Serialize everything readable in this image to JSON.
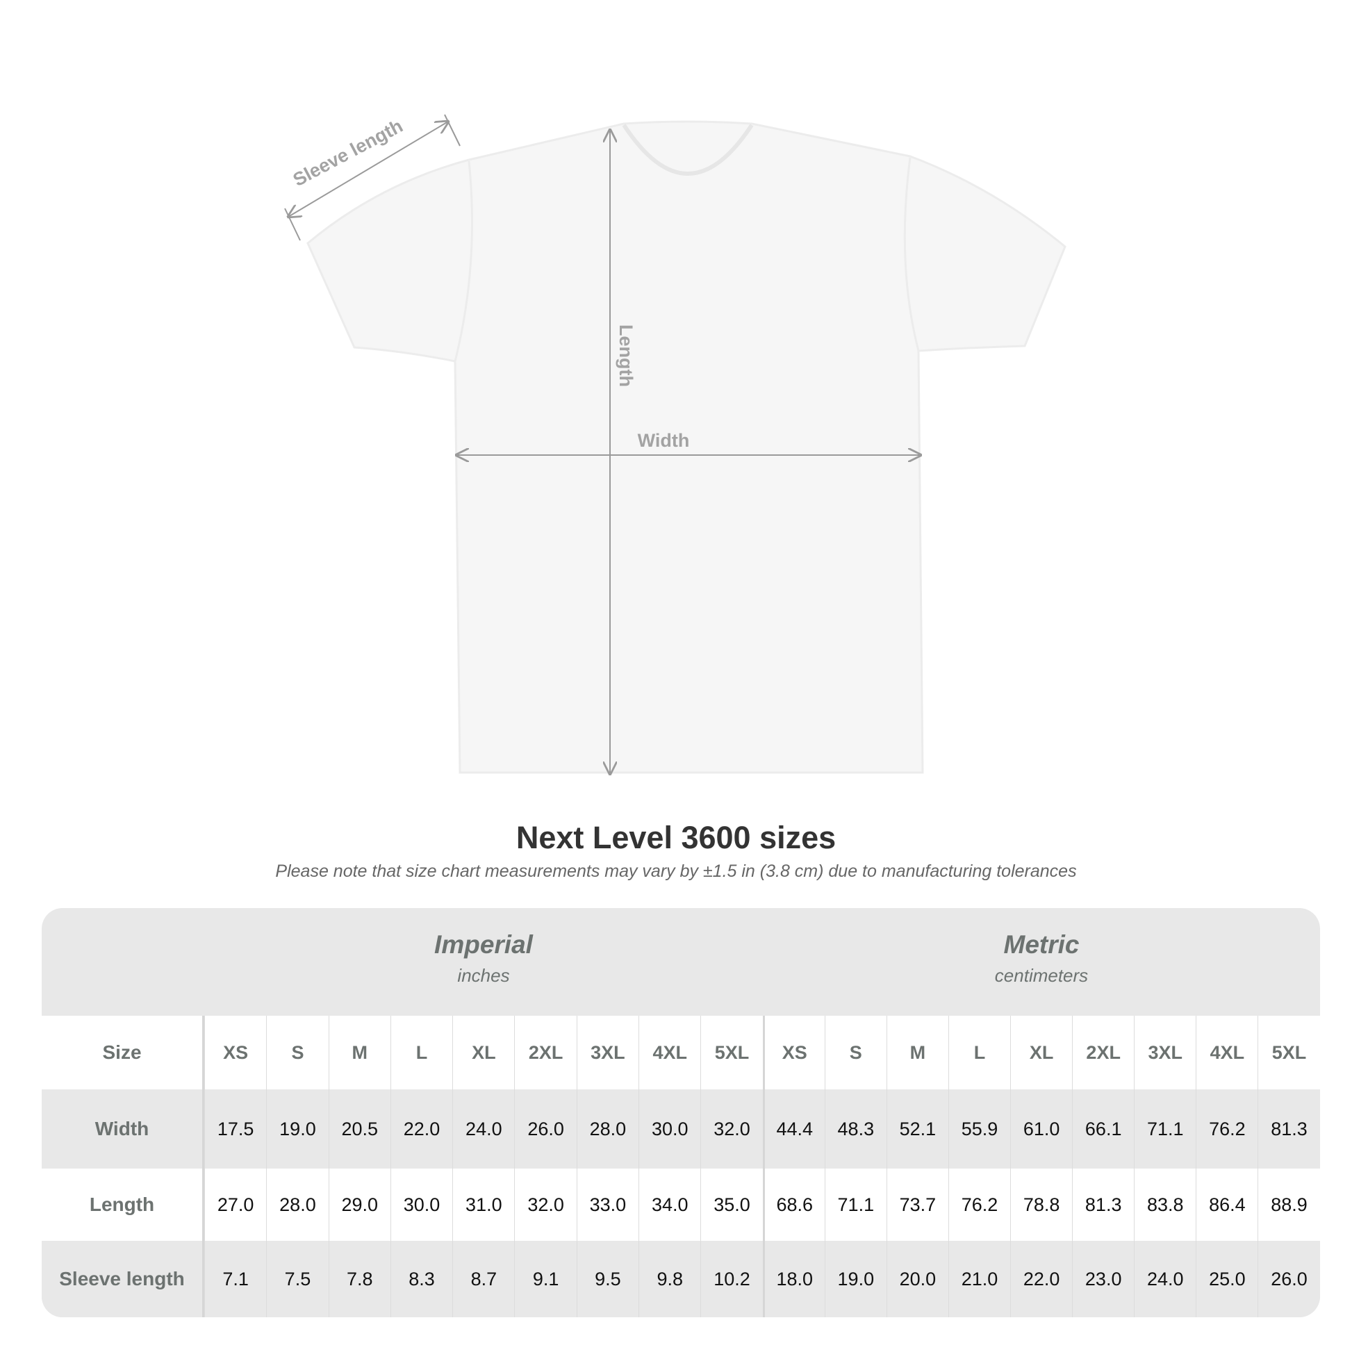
{
  "diagram": {
    "labels": {
      "sleeve": "Sleeve length",
      "length": "Length",
      "width": "Width"
    },
    "garment_color": "#f7f7f7",
    "arrow_color": "#9a9a9a"
  },
  "title": "Next Level 3600 sizes",
  "subtitle": "Please note that size chart measurements may vary by ±1.5 in (3.8 cm) due to manufacturing tolerances",
  "table": {
    "imperial": {
      "title": "Imperial",
      "unit": "inches"
    },
    "metric": {
      "title": "Metric",
      "unit": "centimeters"
    },
    "size_label": "Size",
    "sizes": [
      "XS",
      "S",
      "M",
      "L",
      "XL",
      "2XL",
      "3XL",
      "4XL",
      "5XL"
    ],
    "rows": [
      {
        "label": "Width",
        "imperial": [
          "17.5",
          "19.0",
          "20.5",
          "22.0",
          "24.0",
          "26.0",
          "28.0",
          "30.0",
          "32.0"
        ],
        "metric": [
          "44.4",
          "48.3",
          "52.1",
          "55.9",
          "61.0",
          "66.1",
          "71.1",
          "76.2",
          "81.3"
        ]
      },
      {
        "label": "Length",
        "imperial": [
          "27.0",
          "28.0",
          "29.0",
          "30.0",
          "31.0",
          "32.0",
          "33.0",
          "34.0",
          "35.0"
        ],
        "metric": [
          "68.6",
          "71.1",
          "73.7",
          "76.2",
          "78.8",
          "81.3",
          "83.8",
          "86.4",
          "88.9"
        ]
      },
      {
        "label": "Sleeve length",
        "imperial": [
          "7.1",
          "7.5",
          "7.8",
          "8.3",
          "8.7",
          "9.1",
          "9.5",
          "9.8",
          "10.2"
        ],
        "metric": [
          "18.0",
          "19.0",
          "20.0",
          "21.0",
          "22.0",
          "23.0",
          "24.0",
          "25.0",
          "26.0"
        ]
      }
    ]
  }
}
